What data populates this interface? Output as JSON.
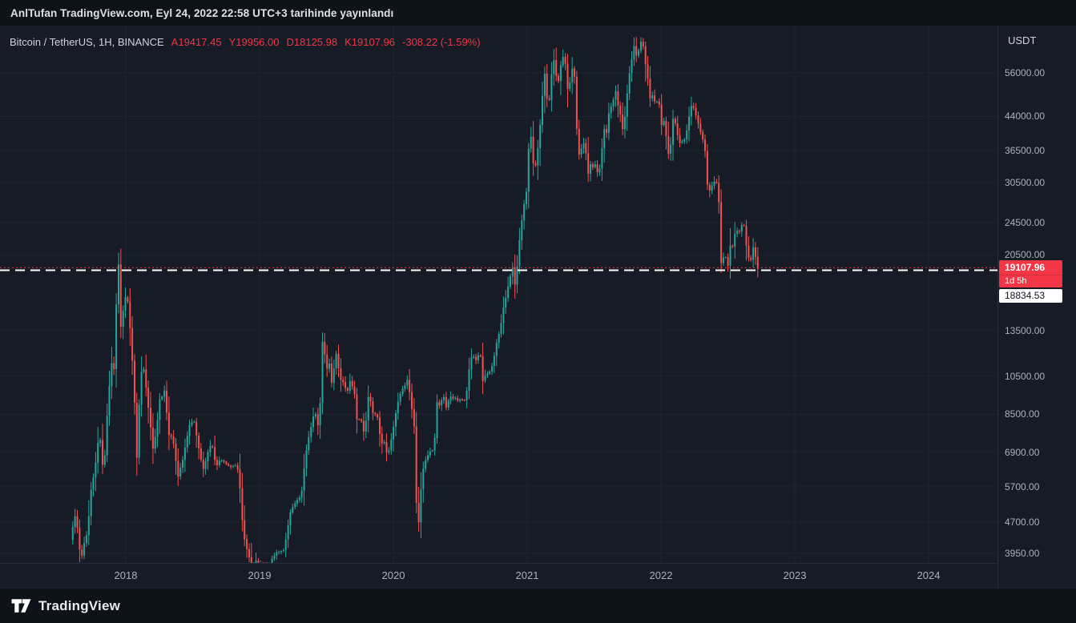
{
  "header": {
    "published_text": "AnlTufan TradingView.com, Eyl 24, 2022 22:58 UTC+3 tarihinde yayınlandı"
  },
  "legend": {
    "symbol_title": "Bitcoin / TetherUS, 1H, BINANCE",
    "ohlc": [
      {
        "label": "A",
        "value": "19417.45"
      },
      {
        "label": "Y",
        "value": "19956.00"
      },
      {
        "label": "D",
        "value": "18125.98"
      },
      {
        "label": "K",
        "value": "19107.96"
      }
    ],
    "change": "-308.22 (-1.59%)"
  },
  "price_axis": {
    "currency_label": "USDT"
  },
  "badges": {
    "last_price": "19107.96",
    "countdown": "1d 5h",
    "level_price": "18834.53"
  },
  "footer": {
    "brand": "TradingView"
  },
  "colors": {
    "up": "#26a69a",
    "down": "#ef5350",
    "last_price_line": "#f23645",
    "level_line": "#ffffff",
    "background": "#0e1219",
    "panel": "#161b26",
    "grid": "#1d2330",
    "axis_text": "#abb1bd",
    "text": "#d1d4dc"
  },
  "chart_data": {
    "type": "candlestick",
    "title": "Bitcoin / TetherUS, 1H, BINANCE",
    "ylabel": "USDT",
    "y_scale": "log",
    "grid": true,
    "x_unit": "year",
    "x_domain": [
      2017.06,
      2024.515
    ],
    "y_domain": [
      3744,
      72660
    ],
    "x_ticks": [
      2018,
      2019,
      2020,
      2021,
      2022,
      2023,
      2024
    ],
    "y_ticks": [
      56000,
      44000,
      36500,
      30500,
      24500,
      20500,
      13500,
      10500,
      8500,
      6900,
      5700,
      4700,
      3950
    ],
    "price_lines": [
      {
        "name": "last-price-line",
        "price": 19107.96,
        "color": "#f23645",
        "dash": "2 3",
        "width": 1
      },
      {
        "name": "user-level-line",
        "price": 18834.53,
        "color": "#ffffff",
        "dash": "12 7",
        "width": 2
      }
    ],
    "candles": {
      "t_start": 2017.595,
      "t_end": 2022.732,
      "count": 300
    },
    "keyframes": [
      [
        2017.595,
        4250
      ],
      [
        2017.615,
        4600
      ],
      [
        2017.632,
        4900
      ],
      [
        2017.652,
        4400
      ],
      [
        2017.672,
        3760
      ],
      [
        2017.695,
        4150
      ],
      [
        2017.72,
        4380
      ],
      [
        2017.748,
        5600
      ],
      [
        2017.775,
        6150
      ],
      [
        2017.8,
        7250
      ],
      [
        2017.822,
        7400
      ],
      [
        2017.843,
        5900
      ],
      [
        2017.864,
        8100
      ],
      [
        2017.885,
        9850
      ],
      [
        2017.903,
        11300
      ],
      [
        2017.922,
        10900
      ],
      [
        2017.94,
        16400
      ],
      [
        2017.954,
        19650
      ],
      [
        2017.968,
        13600
      ],
      [
        2017.984,
        14800
      ],
      [
        2018.014,
        16900
      ],
      [
        2018.042,
        13600
      ],
      [
        2018.068,
        10100
      ],
      [
        2018.094,
        6450
      ],
      [
        2018.113,
        9800
      ],
      [
        2018.134,
        11400
      ],
      [
        2018.163,
        9700
      ],
      [
        2018.188,
        8250
      ],
      [
        2018.214,
        6950
      ],
      [
        2018.24,
        7900
      ],
      [
        2018.264,
        9250
      ],
      [
        2018.298,
        9650
      ],
      [
        2018.33,
        7600
      ],
      [
        2018.36,
        7400
      ],
      [
        2018.398,
        6050
      ],
      [
        2018.438,
        6700
      ],
      [
        2018.478,
        7900
      ],
      [
        2018.518,
        8250
      ],
      [
        2018.554,
        7000
      ],
      [
        2018.588,
        6250
      ],
      [
        2018.62,
        6900
      ],
      [
        2018.652,
        7300
      ],
      [
        2018.68,
        6400
      ],
      [
        2018.718,
        6600
      ],
      [
        2018.756,
        6450
      ],
      [
        2018.798,
        6350
      ],
      [
        2018.842,
        6400
      ],
      [
        2018.864,
        5550
      ],
      [
        2018.884,
        4500
      ],
      [
        2018.908,
        4100
      ],
      [
        2018.932,
        3850
      ],
      [
        2018.954,
        3250
      ],
      [
        2018.98,
        3800
      ],
      [
        2019.01,
        3700
      ],
      [
        2019.044,
        3520
      ],
      [
        2019.078,
        3650
      ],
      [
        2019.115,
        3900
      ],
      [
        2019.152,
        3980
      ],
      [
        2019.195,
        4060
      ],
      [
        2019.243,
        5050
      ],
      [
        2019.283,
        5250
      ],
      [
        2019.32,
        5450
      ],
      [
        2019.355,
        6900
      ],
      [
        2019.392,
        7950
      ],
      [
        2019.423,
        8650
      ],
      [
        2019.447,
        7950
      ],
      [
        2019.464,
        9250
      ],
      [
        2019.48,
        13000
      ],
      [
        2019.496,
        11900
      ],
      [
        2019.51,
        10700
      ],
      [
        2019.524,
        12300
      ],
      [
        2019.54,
        9800
      ],
      [
        2019.56,
        10700
      ],
      [
        2019.583,
        11900
      ],
      [
        2019.61,
        10300
      ],
      [
        2019.642,
        10100
      ],
      [
        2019.66,
        9550
      ],
      [
        2019.688,
        10300
      ],
      [
        2019.718,
        9500
      ],
      [
        2019.735,
        8250
      ],
      [
        2019.764,
        8300
      ],
      [
        2019.798,
        7500
      ],
      [
        2019.814,
        9450
      ],
      [
        2019.834,
        9200
      ],
      [
        2019.86,
        8500
      ],
      [
        2019.884,
        8600
      ],
      [
        2019.918,
        7200
      ],
      [
        2019.944,
        7350
      ],
      [
        2019.962,
        6750
      ],
      [
        2019.986,
        7200
      ],
      [
        2020.018,
        8300
      ],
      [
        2020.05,
        9300
      ],
      [
        2020.082,
        9850
      ],
      [
        2020.114,
        10300
      ],
      [
        2020.14,
        9050
      ],
      [
        2020.164,
        7950
      ],
      [
        2020.19,
        4150
      ],
      [
        2020.206,
        5250
      ],
      [
        2020.23,
        6300
      ],
      [
        2020.26,
        6750
      ],
      [
        2020.288,
        6900
      ],
      [
        2020.314,
        7100
      ],
      [
        2020.332,
        9150
      ],
      [
        2020.36,
        8800
      ],
      [
        2020.38,
        9700
      ],
      [
        2020.402,
        8750
      ],
      [
        2020.43,
        9400
      ],
      [
        2020.46,
        9300
      ],
      [
        2020.49,
        9150
      ],
      [
        2020.52,
        9200
      ],
      [
        2020.55,
        9150
      ],
      [
        2020.576,
        11050
      ],
      [
        2020.6,
        11800
      ],
      [
        2020.63,
        11500
      ],
      [
        2020.658,
        11900
      ],
      [
        2020.676,
        10250
      ],
      [
        2020.702,
        10550
      ],
      [
        2020.73,
        10700
      ],
      [
        2020.758,
        11500
      ],
      [
        2020.784,
        12950
      ],
      [
        2020.808,
        13550
      ],
      [
        2020.834,
        15500
      ],
      [
        2020.858,
        16700
      ],
      [
        2020.884,
        18400
      ],
      [
        2020.9,
        19200
      ],
      [
        2020.914,
        17200
      ],
      [
        2020.934,
        19200
      ],
      [
        2020.958,
        23400
      ],
      [
        2020.984,
        26800
      ],
      [
        2021.004,
        29300
      ],
      [
        2021.018,
        36700
      ],
      [
        2021.034,
        40300
      ],
      [
        2021.05,
        34600
      ],
      [
        2021.064,
        32100
      ],
      [
        2021.08,
        35500
      ],
      [
        2021.098,
        38300
      ],
      [
        2021.114,
        46400
      ],
      [
        2021.13,
        51800
      ],
      [
        2021.144,
        57200
      ],
      [
        2021.16,
        46600
      ],
      [
        2021.176,
        48600
      ],
      [
        2021.194,
        57600
      ],
      [
        2021.21,
        60800
      ],
      [
        2021.226,
        54600
      ],
      [
        2021.24,
        52500
      ],
      [
        2021.256,
        58400
      ],
      [
        2021.27,
        59100
      ],
      [
        2021.284,
        63400
      ],
      [
        2021.3,
        55600
      ],
      [
        2021.316,
        49800
      ],
      [
        2021.33,
        54000
      ],
      [
        2021.344,
        57300
      ],
      [
        2021.36,
        56400
      ],
      [
        2021.376,
        43500
      ],
      [
        2021.39,
        34500
      ],
      [
        2021.404,
        37400
      ],
      [
        2021.42,
        36600
      ],
      [
        2021.434,
        38700
      ],
      [
        2021.45,
        35700
      ],
      [
        2021.466,
        31800
      ],
      [
        2021.48,
        34100
      ],
      [
        2021.5,
        33500
      ],
      [
        2021.514,
        33900
      ],
      [
        2021.53,
        32900
      ],
      [
        2021.544,
        31700
      ],
      [
        2021.56,
        34400
      ],
      [
        2021.576,
        39400
      ],
      [
        2021.59,
        42100
      ],
      [
        2021.604,
        39900
      ],
      [
        2021.62,
        45500
      ],
      [
        2021.64,
        47000
      ],
      [
        2021.656,
        48700
      ],
      [
        2021.674,
        51500
      ],
      [
        2021.69,
        46100
      ],
      [
        2021.704,
        44700
      ],
      [
        2021.72,
        41100
      ],
      [
        2021.736,
        43600
      ],
      [
        2021.75,
        47100
      ],
      [
        2021.766,
        54700
      ],
      [
        2021.78,
        57400
      ],
      [
        2021.794,
        61900
      ],
      [
        2021.806,
        65800
      ],
      [
        2021.82,
        61400
      ],
      [
        2021.834,
        63100
      ],
      [
        2021.85,
        64300
      ],
      [
        2021.862,
        67300
      ],
      [
        2021.876,
        64900
      ],
      [
        2021.89,
        58700
      ],
      [
        2021.904,
        57300
      ],
      [
        2021.92,
        49400
      ],
      [
        2021.934,
        47700
      ],
      [
        2021.95,
        50700
      ],
      [
        2021.964,
        47000
      ],
      [
        2021.98,
        47600
      ],
      [
        2021.994,
        47300
      ],
      [
        2022.01,
        42000
      ],
      [
        2022.024,
        43100
      ],
      [
        2022.04,
        42400
      ],
      [
        2022.054,
        36900
      ],
      [
        2022.07,
        35200
      ],
      [
        2022.084,
        38500
      ],
      [
        2022.1,
        43800
      ],
      [
        2022.114,
        42500
      ],
      [
        2022.13,
        40100
      ],
      [
        2022.144,
        38400
      ],
      [
        2022.16,
        37900
      ],
      [
        2022.174,
        39200
      ],
      [
        2022.19,
        38500
      ],
      [
        2022.204,
        41000
      ],
      [
        2022.22,
        44400
      ],
      [
        2022.234,
        47000
      ],
      [
        2022.25,
        46700
      ],
      [
        2022.264,
        45400
      ],
      [
        2022.28,
        43200
      ],
      [
        2022.294,
        41100
      ],
      [
        2022.31,
        39800
      ],
      [
        2022.324,
        38700
      ],
      [
        2022.34,
        36100
      ],
      [
        2022.354,
        30300
      ],
      [
        2022.37,
        29100
      ],
      [
        2022.384,
        30200
      ],
      [
        2022.4,
        29500
      ],
      [
        2022.414,
        31600
      ],
      [
        2022.43,
        29900
      ],
      [
        2022.444,
        26800
      ],
      [
        2022.454,
        20300
      ],
      [
        2022.464,
        18400
      ],
      [
        2022.48,
        21100
      ],
      [
        2022.494,
        20100
      ],
      [
        2022.51,
        19350
      ],
      [
        2022.524,
        21550
      ],
      [
        2022.54,
        20850
      ],
      [
        2022.554,
        23150
      ],
      [
        2022.57,
        22600
      ],
      [
        2022.584,
        23800
      ],
      [
        2022.6,
        23300
      ],
      [
        2022.614,
        24350
      ],
      [
        2022.63,
        24100
      ],
      [
        2022.644,
        21650
      ],
      [
        2022.66,
        20150
      ],
      [
        2022.674,
        19800
      ],
      [
        2022.69,
        20250
      ],
      [
        2022.704,
        22250
      ],
      [
        2022.716,
        20150
      ],
      [
        2022.724,
        19450
      ],
      [
        2022.732,
        19108
      ]
    ]
  }
}
